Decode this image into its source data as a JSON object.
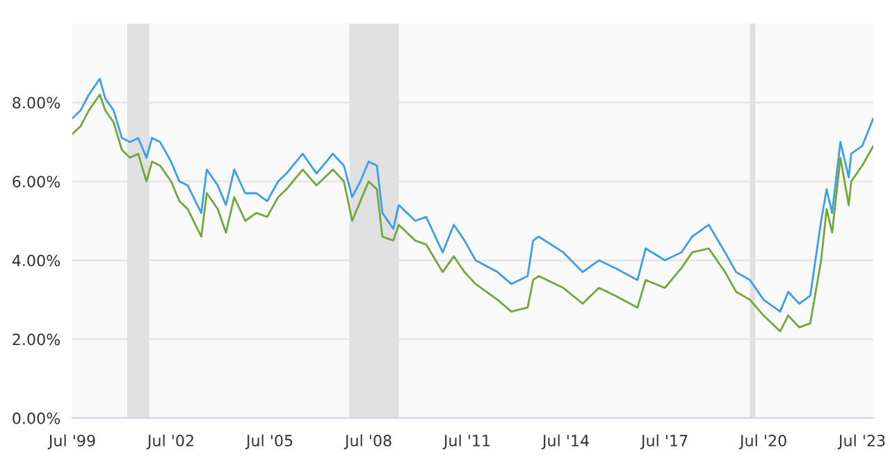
{
  "chart_data": {
    "type": "line",
    "xlim": [
      "1999-07",
      "2023-11"
    ],
    "xticks": [
      {
        "value": "1999-07",
        "label": "Jul '99"
      },
      {
        "value": "2002-07",
        "label": "Jul '02"
      },
      {
        "value": "2005-07",
        "label": "Jul '05"
      },
      {
        "value": "2008-07",
        "label": "Jul '08"
      },
      {
        "value": "2011-07",
        "label": "Jul '11"
      },
      {
        "value": "2014-07",
        "label": "Jul '14"
      },
      {
        "value": "2017-07",
        "label": "Jul '17"
      },
      {
        "value": "2020-07",
        "label": "Jul '20"
      },
      {
        "value": "2023-07",
        "label": "Jul '23"
      }
    ],
    "ylim": [
      0,
      10
    ],
    "yticks": [
      {
        "value": 0,
        "label": "0.00%"
      },
      {
        "value": 2,
        "label": "2.00%"
      },
      {
        "value": 4,
        "label": "4.00%"
      },
      {
        "value": 6,
        "label": "6.00%"
      },
      {
        "value": 8,
        "label": "8.00%"
      }
    ],
    "grid": "y",
    "bands": [
      {
        "axis": "x",
        "from": "2001-03",
        "to": "2001-11",
        "color": "#e0e0e0"
      },
      {
        "axis": "x",
        "from": "2007-12",
        "to": "2009-06",
        "color": "#e0e0e0"
      },
      {
        "axis": "x",
        "from": "2020-02",
        "to": "2020-04",
        "color": "#e0e0e0"
      }
    ],
    "x": [
      "1999-07",
      "1999-10",
      "2000-01",
      "2000-05",
      "2000-07",
      "2000-10",
      "2001-01",
      "2001-04",
      "2001-07",
      "2001-10",
      "2001-12",
      "2002-03",
      "2002-07",
      "2002-10",
      "2003-01",
      "2003-06",
      "2003-08",
      "2003-12",
      "2004-03",
      "2004-06",
      "2004-10",
      "2005-02",
      "2005-06",
      "2005-10",
      "2006-01",
      "2006-07",
      "2006-12",
      "2007-06",
      "2007-10",
      "2008-01",
      "2008-04",
      "2008-07",
      "2008-10",
      "2008-12",
      "2009-04",
      "2009-06",
      "2009-12",
      "2010-04",
      "2010-10",
      "2011-02",
      "2011-06",
      "2011-10",
      "2012-06",
      "2012-11",
      "2013-05",
      "2013-07",
      "2013-09",
      "2014-06",
      "2015-01",
      "2015-07",
      "2016-01",
      "2016-09",
      "2016-12",
      "2017-07",
      "2018-01",
      "2018-05",
      "2018-11",
      "2019-05",
      "2019-09",
      "2020-02",
      "2020-07",
      "2021-01",
      "2021-04",
      "2021-08",
      "2021-12",
      "2022-04",
      "2022-06",
      "2022-08",
      "2022-11",
      "2023-02",
      "2023-03",
      "2023-07",
      "2023-11"
    ],
    "series": [
      {
        "color": "#3a9ee8",
        "values": [
          7.6,
          7.8,
          8.2,
          8.6,
          8.1,
          7.8,
          7.1,
          7.0,
          7.1,
          6.6,
          7.1,
          7.0,
          6.5,
          6.0,
          5.9,
          5.2,
          6.3,
          5.9,
          5.4,
          6.3,
          5.7,
          5.7,
          5.5,
          6.0,
          6.2,
          6.7,
          6.2,
          6.7,
          6.4,
          5.6,
          6.0,
          6.5,
          6.4,
          5.2,
          4.8,
          5.4,
          5.0,
          5.1,
          4.2,
          4.9,
          4.5,
          4.0,
          3.7,
          3.4,
          3.6,
          4.5,
          4.6,
          4.2,
          3.7,
          4.0,
          3.8,
          3.5,
          4.3,
          4.0,
          4.2,
          4.6,
          4.9,
          4.2,
          3.7,
          3.5,
          3.0,
          2.7,
          3.2,
          2.9,
          3.1,
          5.0,
          5.8,
          5.2,
          7.0,
          6.1,
          6.7,
          6.9,
          7.6
        ]
      },
      {
        "color": "#72a53a",
        "values": [
          7.2,
          7.4,
          7.8,
          8.2,
          7.8,
          7.5,
          6.8,
          6.6,
          6.7,
          6.0,
          6.5,
          6.4,
          6.0,
          5.5,
          5.3,
          4.6,
          5.7,
          5.3,
          4.7,
          5.6,
          5.0,
          5.2,
          5.1,
          5.6,
          5.8,
          6.3,
          5.9,
          6.3,
          6.0,
          5.0,
          5.5,
          6.0,
          5.8,
          4.6,
          4.5,
          4.9,
          4.5,
          4.4,
          3.7,
          4.1,
          3.7,
          3.4,
          3.0,
          2.7,
          2.8,
          3.5,
          3.6,
          3.3,
          2.9,
          3.3,
          3.1,
          2.8,
          3.5,
          3.3,
          3.8,
          4.2,
          4.3,
          3.7,
          3.2,
          3.0,
          2.6,
          2.2,
          2.6,
          2.3,
          2.4,
          4.0,
          5.3,
          4.7,
          6.6,
          5.4,
          6.0,
          6.4,
          6.9
        ]
      }
    ]
  }
}
